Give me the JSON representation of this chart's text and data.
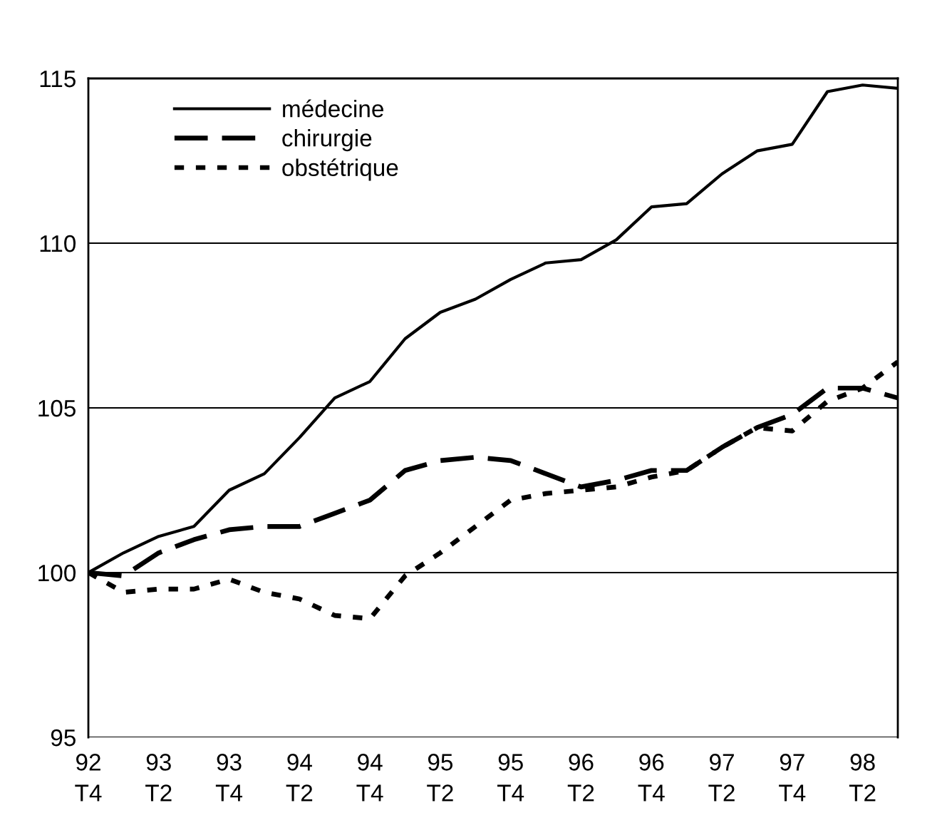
{
  "chart_data": {
    "type": "line",
    "categories": [
      "92\nT4",
      null,
      "93\nT2",
      null,
      "93\nT4",
      null,
      "94\nT2",
      null,
      "94\nT4",
      null,
      "95\nT2",
      null,
      "95\nT4",
      null,
      "96\nT2",
      null,
      "96\nT4",
      null,
      "97\nT2",
      null,
      "97\nT4",
      null,
      "98\nT2",
      null
    ],
    "series": [
      {
        "name": "médecine",
        "color": "#000000",
        "line_style": "solid",
        "values": [
          100,
          100.6,
          101.1,
          101.4,
          102.5,
          103.0,
          104.1,
          105.3,
          105.8,
          107.1,
          107.9,
          108.3,
          108.9,
          109.4,
          109.5,
          110.1,
          111.1,
          111.2,
          112.1,
          112.8,
          113.0,
          114.6,
          114.8,
          114.7
        ]
      },
      {
        "name": "chirurgie",
        "color": "#000000",
        "line_style": "dashed",
        "values": [
          100,
          99.9,
          100.6,
          101.0,
          101.3,
          101.4,
          101.4,
          101.8,
          102.2,
          103.1,
          103.4,
          103.5,
          103.4,
          103.0,
          102.6,
          102.8,
          103.1,
          103.1,
          103.8,
          104.4,
          104.8,
          105.6,
          105.6,
          105.3
        ]
      },
      {
        "name": "obstétrique",
        "color": "#000000",
        "line_style": "dotted",
        "values": [
          100,
          99.4,
          99.5,
          99.5,
          99.8,
          99.4,
          99.2,
          98.7,
          98.6,
          99.9,
          100.6,
          101.4,
          102.2,
          102.4,
          102.5,
          102.6,
          102.9,
          103.1,
          103.8,
          104.4,
          104.3,
          105.2,
          105.6,
          106.4
        ]
      }
    ],
    "ylim": [
      95,
      115
    ],
    "yticks": [
      95,
      100,
      105,
      110,
      115
    ],
    "grid": "y",
    "legend": "top left",
    "marker": "none"
  }
}
